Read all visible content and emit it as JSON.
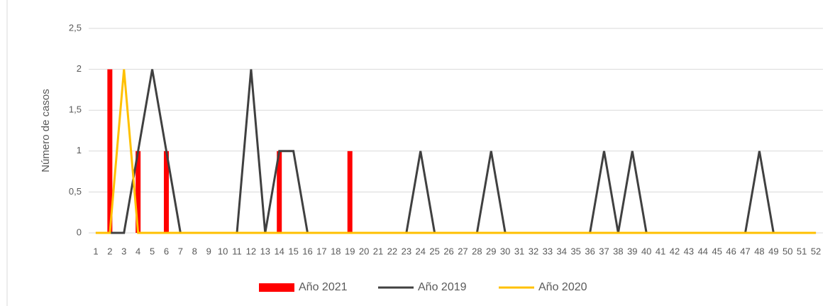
{
  "chart_data": {
    "type": "combo",
    "ylabel": "Número de casos",
    "categories": [
      "1",
      "2",
      "3",
      "4",
      "5",
      "6",
      "7",
      "8",
      "9",
      "10",
      "11",
      "12",
      "13",
      "14",
      "15",
      "16",
      "17",
      "18",
      "19",
      "20",
      "21",
      "22",
      "23",
      "24",
      "25",
      "26",
      "27",
      "28",
      "29",
      "30",
      "31",
      "32",
      "33",
      "34",
      "35",
      "36",
      "37",
      "38",
      "39",
      "40",
      "41",
      "42",
      "43",
      "44",
      "45",
      "46",
      "47",
      "48",
      "49",
      "50",
      "51",
      "52"
    ],
    "series": [
      {
        "name": "Año 2021",
        "type": "bar",
        "color": "#ff0000",
        "values": [
          0,
          2,
          0,
          1,
          0,
          1,
          0,
          0,
          0,
          0,
          0,
          0,
          0,
          1,
          0,
          0,
          0,
          0,
          1,
          0,
          0,
          0,
          0,
          0,
          0,
          0,
          0,
          0,
          0,
          0,
          0,
          0,
          0,
          0,
          0,
          0,
          0,
          0,
          0,
          0,
          0,
          0,
          0,
          0,
          0,
          0,
          0,
          0,
          0,
          0,
          0,
          0
        ]
      },
      {
        "name": "Año 2019",
        "type": "line",
        "color": "#404040",
        "values": [
          0,
          0,
          0,
          1,
          2,
          1,
          0,
          0,
          0,
          0,
          0,
          2,
          0,
          1,
          1,
          0,
          0,
          0,
          0,
          0,
          0,
          0,
          0,
          1,
          0,
          0,
          0,
          0,
          1,
          0,
          0,
          0,
          0,
          0,
          0,
          0,
          1,
          0,
          1,
          0,
          0,
          0,
          0,
          0,
          0,
          0,
          0,
          1,
          0,
          0,
          0,
          0
        ]
      },
      {
        "name": "Año 2020",
        "type": "line",
        "color": "#ffc000",
        "values": [
          0,
          0,
          2,
          0,
          0,
          0,
          0,
          0,
          0,
          0,
          0,
          0,
          0,
          0,
          0,
          0,
          0,
          0,
          0,
          0,
          0,
          0,
          0,
          0,
          0,
          0,
          0,
          0,
          0,
          0,
          0,
          0,
          0,
          0,
          0,
          0,
          0,
          0,
          0,
          0,
          0,
          0,
          0,
          0,
          0,
          0,
          0,
          0,
          0,
          0,
          0,
          0
        ]
      }
    ],
    "ylim": [
      0,
      2.5
    ],
    "yticks": [
      0,
      {
        "value": 0.5,
        "label": "0,5"
      },
      1,
      {
        "value": 1.5,
        "label": "1,5"
      },
      2,
      {
        "value": 2.5,
        "label": "2,5"
      }
    ],
    "grid": true,
    "legend": "bottom"
  }
}
